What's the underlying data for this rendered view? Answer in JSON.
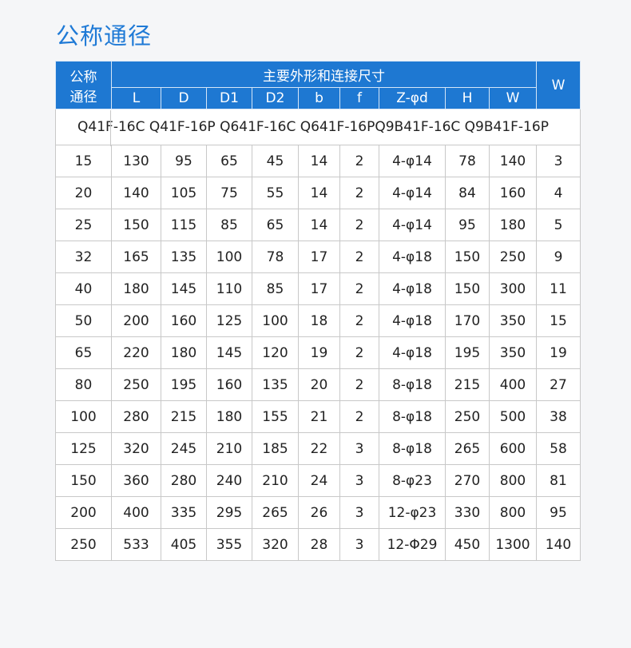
{
  "title": "公称通径",
  "header": {
    "nominal": "公称\n通径",
    "nominal_lines": [
      "公称",
      "通径"
    ],
    "group": "主要外形和连接尺寸",
    "columns": [
      "L",
      "D",
      "D1",
      "D2",
      "b",
      "f",
      "Z-φd",
      "H",
      "W"
    ],
    "weight": "W"
  },
  "models": "Q41F-16C Q41F-16P Q641F-16C Q641F-16PQ9B41F-16C Q9B41F-16P",
  "rows": [
    [
      "15",
      "130",
      "95",
      "65",
      "45",
      "14",
      "2",
      "4-φ14",
      "78",
      "140",
      "3"
    ],
    [
      "20",
      "140",
      "105",
      "75",
      "55",
      "14",
      "2",
      "4-φ14",
      "84",
      "160",
      "4"
    ],
    [
      "25",
      "150",
      "115",
      "85",
      "65",
      "14",
      "2",
      "4-φ14",
      "95",
      "180",
      "5"
    ],
    [
      "32",
      "165",
      "135",
      "100",
      "78",
      "17",
      "2",
      "4-φ18",
      "150",
      "250",
      "9"
    ],
    [
      "40",
      "180",
      "145",
      "110",
      "85",
      "17",
      "2",
      "4-φ18",
      "150",
      "300",
      "11"
    ],
    [
      "50",
      "200",
      "160",
      "125",
      "100",
      "18",
      "2",
      "4-φ18",
      "170",
      "350",
      "15"
    ],
    [
      "65",
      "220",
      "180",
      "145",
      "120",
      "19",
      "2",
      "4-φ18",
      "195",
      "350",
      "19"
    ],
    [
      "80",
      "250",
      "195",
      "160",
      "135",
      "20",
      "2",
      "8-φ18",
      "215",
      "400",
      "27"
    ],
    [
      "100",
      "280",
      "215",
      "180",
      "155",
      "21",
      "2",
      "8-φ18",
      "250",
      "500",
      "38"
    ],
    [
      "125",
      "320",
      "245",
      "210",
      "185",
      "22",
      "3",
      "8-φ18",
      "265",
      "600",
      "58"
    ],
    [
      "150",
      "360",
      "280",
      "240",
      "210",
      "24",
      "3",
      "8-φ23",
      "270",
      "800",
      "81"
    ],
    [
      "200",
      "400",
      "335",
      "295",
      "265",
      "26",
      "3",
      "12-φ23",
      "330",
      "800",
      "95"
    ],
    [
      "250",
      "533",
      "405",
      "355",
      "320",
      "28",
      "3",
      "12-Φ29",
      "450",
      "1300",
      "140"
    ]
  ],
  "colors": {
    "header_bg": "#1e78d2",
    "title": "#1f7ad6"
  }
}
